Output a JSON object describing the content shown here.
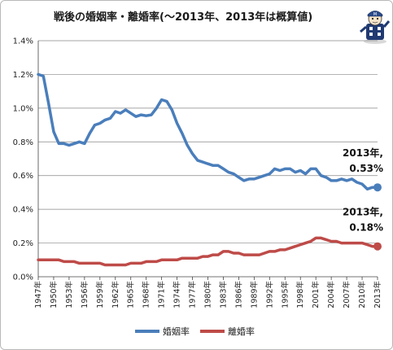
{
  "chart_data": {
    "type": "line",
    "title": "戦後の婚姻率・離婚率(～2013年、2013年は概算値)",
    "xlabel": "",
    "ylabel": "",
    "x": [
      1947,
      1948,
      1949,
      1950,
      1951,
      1952,
      1953,
      1954,
      1955,
      1956,
      1957,
      1958,
      1959,
      1960,
      1961,
      1962,
      1963,
      1964,
      1965,
      1966,
      1967,
      1968,
      1969,
      1970,
      1971,
      1972,
      1973,
      1974,
      1975,
      1976,
      1977,
      1978,
      1979,
      1980,
      1981,
      1982,
      1983,
      1984,
      1985,
      1986,
      1987,
      1988,
      1989,
      1990,
      1991,
      1992,
      1993,
      1994,
      1995,
      1996,
      1997,
      1998,
      1999,
      2000,
      2001,
      2002,
      2003,
      2004,
      2005,
      2006,
      2007,
      2008,
      2009,
      2010,
      2011,
      2012,
      2013
    ],
    "x_tick_labels": [
      "1947年",
      "1950年",
      "1953年",
      "1956年",
      "1959年",
      "1962年",
      "1965年",
      "1968年",
      "1971年",
      "1974年",
      "1977年",
      "1980年",
      "1983年",
      "1986年",
      "1989年",
      "1992年",
      "1995年",
      "1998年",
      "2001年",
      "2004年",
      "2007年",
      "2010年",
      "2013年"
    ],
    "y_tick_labels": [
      "0.0%",
      "0.2%",
      "0.4%",
      "0.6%",
      "0.8%",
      "1.0%",
      "1.2%",
      "1.4%"
    ],
    "ylim": [
      0,
      1.4
    ],
    "grid": true,
    "legend_position": "bottom",
    "series": [
      {
        "name": "婚姻率",
        "color": "#4a7ebb",
        "values": [
          1.2,
          1.19,
          1.03,
          0.86,
          0.79,
          0.79,
          0.78,
          0.79,
          0.8,
          0.79,
          0.85,
          0.9,
          0.91,
          0.93,
          0.94,
          0.98,
          0.97,
          0.99,
          0.97,
          0.95,
          0.96,
          0.955,
          0.96,
          1.0,
          1.05,
          1.04,
          0.99,
          0.91,
          0.85,
          0.78,
          0.73,
          0.69,
          0.68,
          0.67,
          0.66,
          0.66,
          0.64,
          0.62,
          0.61,
          0.59,
          0.57,
          0.58,
          0.58,
          0.59,
          0.6,
          0.61,
          0.64,
          0.63,
          0.64,
          0.64,
          0.62,
          0.63,
          0.61,
          0.64,
          0.64,
          0.6,
          0.59,
          0.57,
          0.57,
          0.58,
          0.57,
          0.58,
          0.56,
          0.55,
          0.52,
          0.53,
          0.53
        ]
      },
      {
        "name": "離婚率",
        "color": "#be4b48",
        "values": [
          0.1,
          0.1,
          0.1,
          0.1,
          0.1,
          0.09,
          0.09,
          0.09,
          0.08,
          0.08,
          0.08,
          0.08,
          0.08,
          0.07,
          0.07,
          0.07,
          0.07,
          0.07,
          0.08,
          0.08,
          0.08,
          0.09,
          0.09,
          0.09,
          0.1,
          0.1,
          0.1,
          0.1,
          0.11,
          0.11,
          0.11,
          0.11,
          0.12,
          0.12,
          0.13,
          0.13,
          0.15,
          0.15,
          0.14,
          0.14,
          0.13,
          0.13,
          0.13,
          0.13,
          0.14,
          0.15,
          0.15,
          0.16,
          0.16,
          0.17,
          0.18,
          0.19,
          0.2,
          0.21,
          0.23,
          0.23,
          0.22,
          0.21,
          0.21,
          0.2,
          0.2,
          0.2,
          0.2,
          0.2,
          0.19,
          0.18,
          0.18
        ]
      }
    ],
    "annotations": [
      {
        "series": 0,
        "text_year": "2013年,",
        "text_value": "0.53%"
      },
      {
        "series": 1,
        "text_year": "2013年,",
        "text_value": "0.18%"
      }
    ]
  },
  "mascot": {
    "icon": "person-mascot-icon",
    "cap_text": "M"
  }
}
